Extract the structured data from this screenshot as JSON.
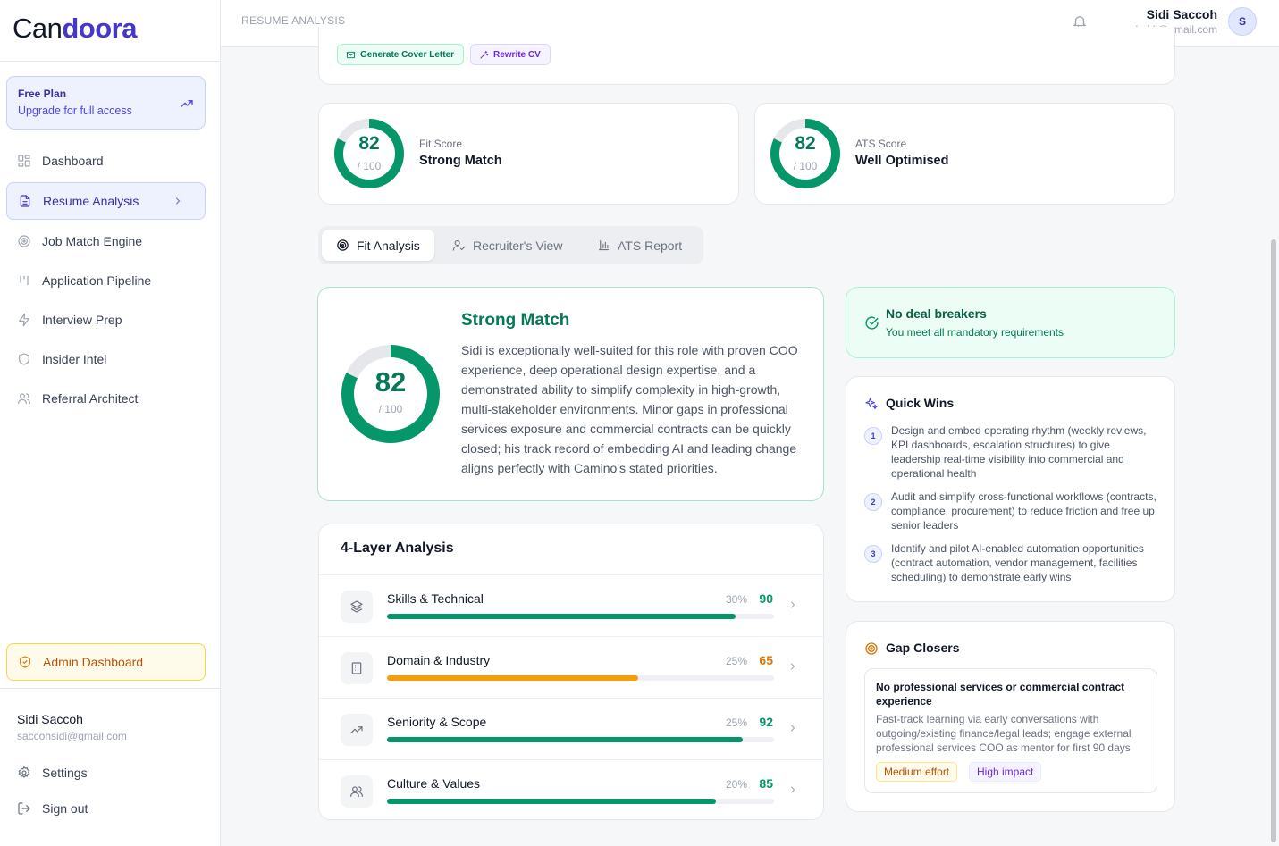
{
  "app": {
    "logo_part1": "Can",
    "logo_part2": "doora"
  },
  "plan": {
    "title": "Free Plan",
    "subtitle": "Upgrade for full access"
  },
  "nav": {
    "items": [
      {
        "label": "Dashboard",
        "icon": "grid-icon"
      },
      {
        "label": "Resume Analysis",
        "icon": "document-icon",
        "active": true
      },
      {
        "label": "Job Match Engine",
        "icon": "target-icon"
      },
      {
        "label": "Application Pipeline",
        "icon": "pipeline-icon"
      },
      {
        "label": "Interview Prep",
        "icon": "bolt-icon"
      },
      {
        "label": "Insider Intel",
        "icon": "shield-icon"
      },
      {
        "label": "Referral Architect",
        "icon": "users-icon"
      }
    ],
    "admin_label": "Admin Dashboard"
  },
  "sidebar_user": {
    "name": "Sidi Saccoh",
    "email": "saccohsidi@gmail.com"
  },
  "sidebar_links": {
    "settings": "Settings",
    "signout": "Sign out"
  },
  "header": {
    "breadcrumb": "RESUME ANALYSIS",
    "user_name": "Sidi Saccoh",
    "user_email": "saccohsidi@gmail.com",
    "avatar_initial": "S"
  },
  "actions": {
    "cover_letter": "Generate Cover Letter",
    "rewrite_cv": "Rewrite CV"
  },
  "scores": {
    "fit": {
      "value": "82",
      "max": "/ 100",
      "label": "Fit Score",
      "verdict": "Strong Match",
      "fraction": 0.82
    },
    "ats": {
      "value": "82",
      "max": "/ 100",
      "label": "ATS Score",
      "verdict": "Well Optimised",
      "fraction": 0.82
    }
  },
  "tabs": [
    {
      "label": "Fit Analysis",
      "active": true
    },
    {
      "label": "Recruiter's View"
    },
    {
      "label": "ATS Report"
    }
  ],
  "summary": {
    "score": "82",
    "max": "/ 100",
    "fraction": 0.82,
    "heading": "Strong Match",
    "text": "Sidi is exceptionally well-suited for this role with proven COO experience, deep operational design expertise, and a demonstrated ability to simplify complexity in high-growth, multi-stakeholder environments. Minor gaps in professional services exposure and commercial contracts can be quickly closed; his track record of embedding AI and leading change aligns perfectly with Camino's stated priorities."
  },
  "layers": {
    "title": "4-Layer Analysis",
    "rows": [
      {
        "name": "Skills & Technical",
        "weight": "30%",
        "score": "90",
        "fraction": 0.9,
        "color": "#059669",
        "icon": "layers-icon"
      },
      {
        "name": "Domain & Industry",
        "weight": "25%",
        "score": "65",
        "fraction": 0.65,
        "color": "#f59e0b",
        "icon": "building-icon"
      },
      {
        "name": "Seniority & Scope",
        "weight": "25%",
        "score": "92",
        "fraction": 0.92,
        "color": "#059669",
        "icon": "trending-up-icon"
      },
      {
        "name": "Culture & Values",
        "weight": "20%",
        "score": "85",
        "fraction": 0.85,
        "color": "#059669",
        "icon": "users-icon"
      }
    ]
  },
  "deal_breakers": {
    "title": "No deal breakers",
    "subtitle": "You meet all mandatory requirements"
  },
  "quick_wins": {
    "title": "Quick Wins",
    "items": [
      {
        "num": "1",
        "text": "Design and embed operating rhythm (weekly reviews, KPI dashboards, escalation structures) to give leadership real-time visibility into commercial and operational health"
      },
      {
        "num": "2",
        "text": "Audit and simplify cross-functional workflows (contracts, compliance, procurement) to reduce friction and free up senior leaders"
      },
      {
        "num": "3",
        "text": "Identify and pilot AI-enabled automation opportunities (contract automation, vendor management, facilities scheduling) to demonstrate early wins"
      }
    ]
  },
  "gap_closers": {
    "title": "Gap Closers",
    "item": {
      "title": "No professional services or commercial contract experience",
      "desc": "Fast-track learning via early conversations with outgoing/existing finance/legal leads; engage external professional services COO as mentor for first 90 days",
      "effort": "Medium effort",
      "impact": "High impact"
    }
  },
  "colors": {
    "accent": "#4338ca",
    "success": "#059669",
    "warning": "#f59e0b"
  }
}
